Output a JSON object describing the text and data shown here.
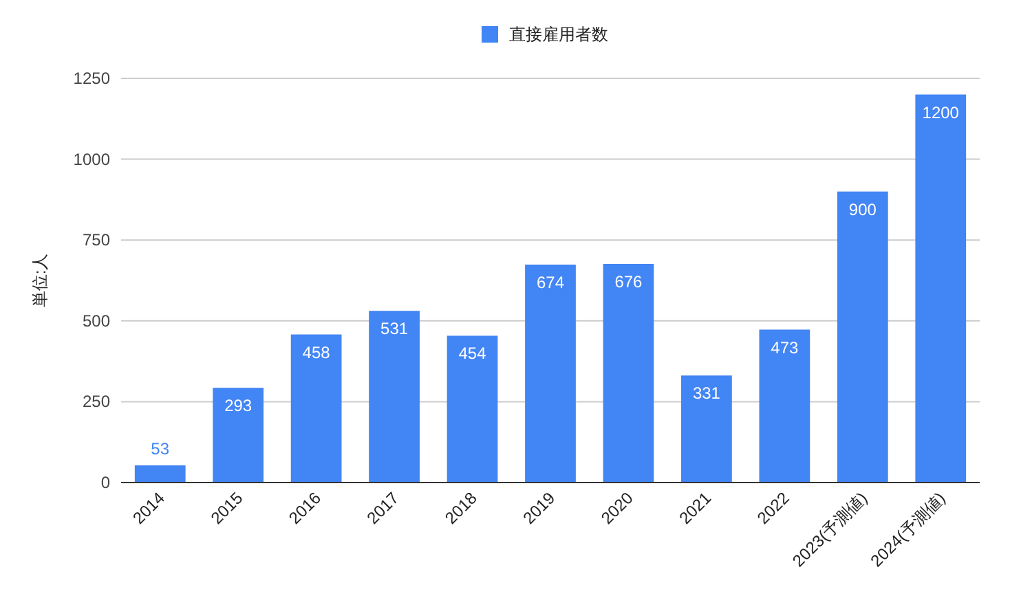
{
  "chart_data": {
    "type": "bar",
    "ylabel": "単位:人",
    "categories": [
      "2014",
      "2015",
      "2016",
      "2017",
      "2018",
      "2019",
      "2020",
      "2021",
      "2022",
      "2023(予測値)",
      "2024(予測値)"
    ],
    "series": [
      {
        "name": "直接雇用者数",
        "color": "#4285f4",
        "values": [
          53,
          293,
          458,
          531,
          454,
          674,
          676,
          331,
          473,
          900,
          1200
        ]
      }
    ],
    "ylim": [
      0,
      1250
    ],
    "yticks": [
      0,
      250,
      500,
      750,
      1000,
      1250
    ],
    "grid": "y",
    "legend": "top",
    "data_labels": true
  }
}
